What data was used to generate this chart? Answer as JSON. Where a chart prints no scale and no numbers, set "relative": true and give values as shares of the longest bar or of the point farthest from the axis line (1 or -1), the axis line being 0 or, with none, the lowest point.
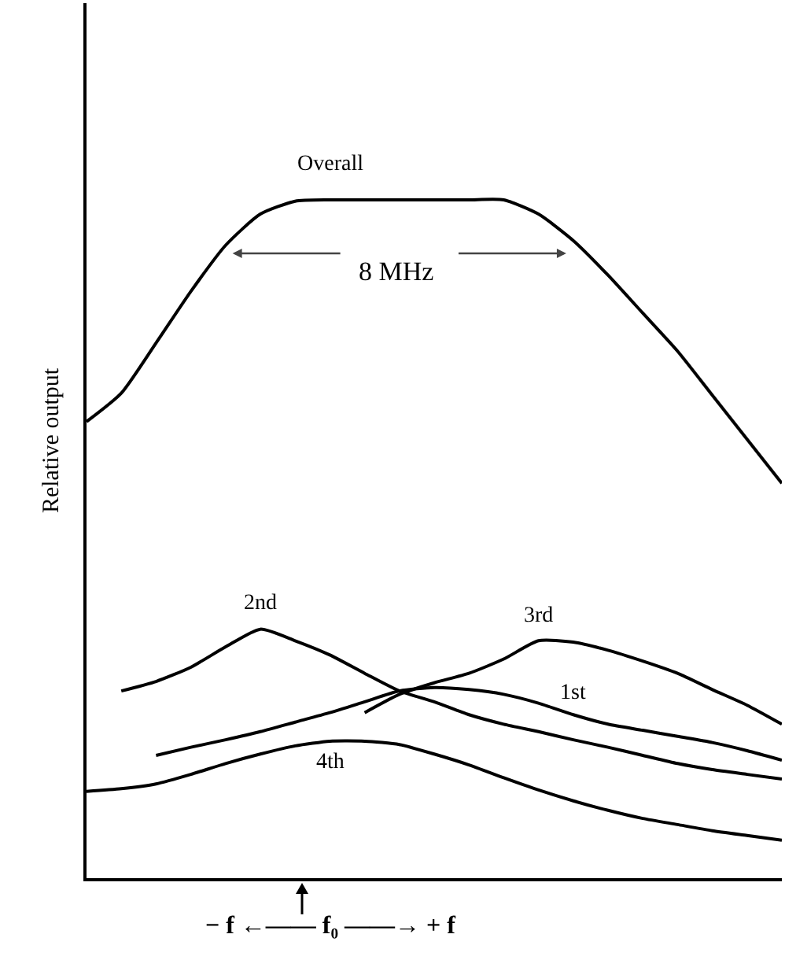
{
  "chart_data": {
    "type": "line",
    "relative": true,
    "ylabel": "Relative output",
    "xlabel": "− f ←—— f₀ ——→ + f",
    "annotations": [
      "8 MHz"
    ],
    "categories": [
      null,
      null,
      null,
      null,
      null,
      null,
      null,
      null,
      null,
      null,
      null,
      null,
      null,
      null,
      null,
      null,
      null,
      null,
      null,
      null,
      null
    ],
    "series": [
      {
        "name": "Overall",
        "color": "#000000",
        "values": [
          0.673,
          0.715,
          0.789,
          0.865,
          0.933,
          0.979,
          0.998,
          1,
          1,
          1,
          1,
          1,
          1,
          0.979,
          0.94,
          0.889,
          0.833,
          0.777,
          0.712,
          0.647,
          0.582
        ]
      },
      {
        "name": "2nd",
        "color": "#000000",
        "values": [
          null,
          0.276,
          0.29,
          0.311,
          0.341,
          0.367,
          0.35,
          0.329,
          0.302,
          0.276,
          0.26,
          0.241,
          0.227,
          0.216,
          0.204,
          0.193,
          0.181,
          0.169,
          0.16,
          0.153,
          0.146
        ]
      },
      {
        "name": "3rd",
        "color": "#000000",
        "values": [
          null,
          null,
          null,
          null,
          null,
          null,
          null,
          null,
          0.244,
          0.271,
          0.288,
          0.302,
          0.323,
          0.35,
          0.348,
          0.336,
          0.32,
          0.302,
          0.278,
          0.255,
          0.227
        ]
      },
      {
        "name": "1st",
        "color": "#000000",
        "values": [
          null,
          null,
          0.181,
          0.193,
          0.204,
          0.216,
          0.23,
          0.244,
          0.26,
          0.276,
          0.281,
          0.278,
          0.271,
          0.258,
          0.241,
          0.227,
          0.218,
          0.209,
          0.2,
          0.188,
          0.174
        ]
      },
      {
        "name": "4th",
        "color": "#000000",
        "values": [
          0.128,
          0.132,
          0.139,
          0.153,
          0.169,
          0.183,
          0.195,
          0.202,
          0.202,
          0.197,
          0.183,
          0.167,
          0.148,
          0.13,
          0.114,
          0.1,
          0.088,
          0.079,
          0.07,
          0.063,
          0.056
        ]
      }
    ]
  }
}
